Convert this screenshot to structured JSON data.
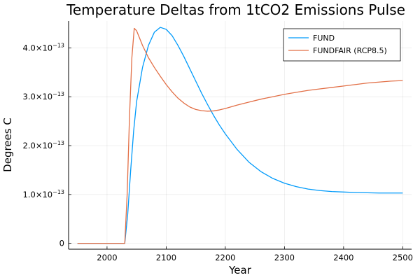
{
  "chart_data": {
    "type": "line",
    "title": "Temperature Deltas from 1tCO2 Emissions Pulse",
    "xlabel": "Year",
    "ylabel": "Degrees C",
    "xlim": [
      1935,
      2515
    ],
    "ylim": [
      -1.2e-14,
      4.55e-13
    ],
    "xticks": [
      2000,
      2100,
      2200,
      2300,
      2400,
      2500
    ],
    "xtick_labels": [
      "2000",
      "2100",
      "2200",
      "2300",
      "2400",
      "2500"
    ],
    "yticks": [
      0,
      1e-13,
      2e-13,
      3e-13,
      4e-13
    ],
    "ytick_labels": [
      {
        "mant": "0",
        "exp": ""
      },
      {
        "mant": "1.0×10",
        "exp": "−13"
      },
      {
        "mant": "2.0×10",
        "exp": "−13"
      },
      {
        "mant": "3.0×10",
        "exp": "−13"
      },
      {
        "mant": "4.0×10",
        "exp": "−13"
      }
    ],
    "grid": true,
    "legend_position": "top-right",
    "series": [
      {
        "name": "FUND",
        "color": "#009AFA",
        "x": [
          1950,
          2020,
          2030,
          2035,
          2040,
          2045,
          2050,
          2060,
          2070,
          2080,
          2090,
          2100,
          2110,
          2120,
          2130,
          2140,
          2150,
          2160,
          2170,
          2180,
          2190,
          2200,
          2220,
          2240,
          2260,
          2280,
          2300,
          2320,
          2340,
          2360,
          2380,
          2400,
          2420,
          2440,
          2460,
          2480,
          2500
        ],
        "y": [
          0,
          0,
          0,
          6e-14,
          1.5e-13,
          2.3e-13,
          2.9e-13,
          3.6e-13,
          4.05e-13,
          4.32e-13,
          4.42e-13,
          4.38e-13,
          4.25e-13,
          4.05e-13,
          3.82e-13,
          3.57e-13,
          3.32e-13,
          3.07e-13,
          2.84e-13,
          2.62e-13,
          2.42e-13,
          2.24e-13,
          1.92e-13,
          1.66e-13,
          1.47e-13,
          1.33e-13,
          1.23e-13,
          1.16e-13,
          1.11e-13,
          1.08e-13,
          1.06e-13,
          1.05e-13,
          1.04e-13,
          1.035e-13,
          1.03e-13,
          1.03e-13,
          1.03e-13
        ]
      },
      {
        "name": "FUNDFAIR (RCP8.5)",
        "color": "#E26F46",
        "x": [
          1950,
          2025,
          2030,
          2034,
          2038,
          2042,
          2046,
          2050,
          2055,
          2060,
          2070,
          2080,
          2090,
          2100,
          2110,
          2120,
          2130,
          2140,
          2150,
          2160,
          2170,
          2180,
          2190,
          2200,
          2220,
          2240,
          2260,
          2280,
          2300,
          2320,
          2340,
          2360,
          2380,
          2400,
          2420,
          2440,
          2460,
          2480,
          2500
        ],
        "y": [
          0,
          0,
          0,
          1e-13,
          2.6e-13,
          3.8e-13,
          4.4e-13,
          4.35e-13,
          4.2e-13,
          4.05e-13,
          3.8e-13,
          3.6e-13,
          3.42e-13,
          3.25e-13,
          3.1e-13,
          2.97e-13,
          2.87e-13,
          2.79e-13,
          2.74e-13,
          2.715e-13,
          2.705e-13,
          2.71e-13,
          2.73e-13,
          2.76e-13,
          2.83e-13,
          2.89e-13,
          2.95e-13,
          3e-13,
          3.05e-13,
          3.09e-13,
          3.13e-13,
          3.16e-13,
          3.19e-13,
          3.22e-13,
          3.25e-13,
          3.28e-13,
          3.3e-13,
          3.32e-13,
          3.33e-13
        ]
      }
    ]
  }
}
